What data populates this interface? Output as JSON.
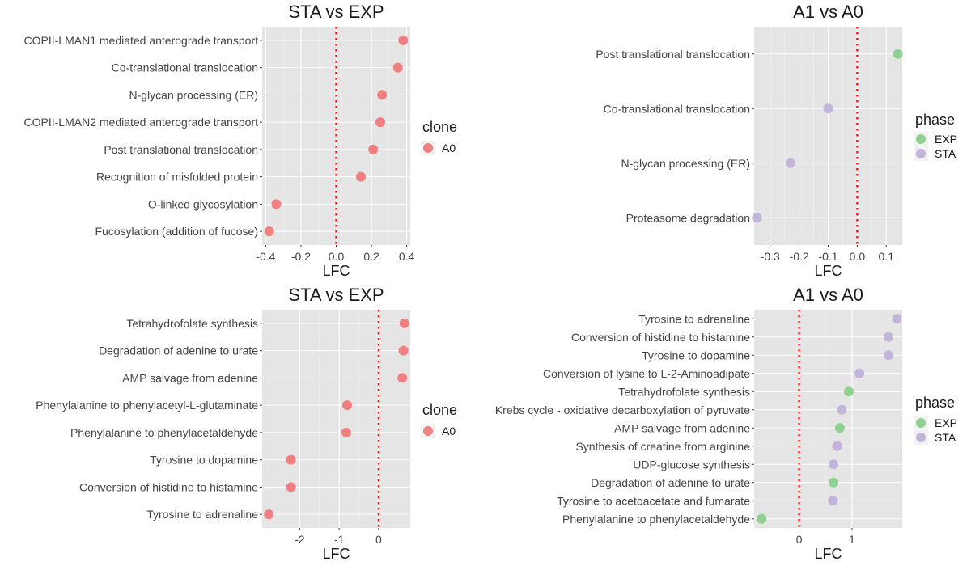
{
  "colors": {
    "panel_background": "#e5e5e5",
    "grid_major": "#ffffff",
    "grid_minor": "#f0f0f0",
    "zero_line": "#ff0000",
    "clone_A0": "#f08080",
    "phase_EXP": "#90d090",
    "phase_STA": "#c3b4dc",
    "text_dark": "#444444",
    "title": "#1a1a1a"
  },
  "chart_data": [
    {
      "type": "scatter",
      "title": "STA vs EXP",
      "xlabel": "LFC",
      "ylabel": "",
      "xlim": [
        -0.42,
        0.42
      ],
      "xticks": [
        -0.4,
        -0.2,
        0.0,
        0.2,
        0.4
      ],
      "xtick_labels": [
        "-0.4",
        "-0.2",
        "0.0",
        "0.2",
        "0.4"
      ],
      "reference_line_x": 0,
      "categories": [
        "COPII-LMAN1 mediated anterograde transport",
        "Co-translational translocation",
        "N-glycan processing (ER)",
        "COPII-LMAN2 mediated anterograde transport",
        "Post translational translocation",
        "Recognition of misfolded protein",
        "O-linked glycosylation",
        "Fucosylation (addition of fucose)"
      ],
      "series": [
        {
          "name": "A0",
          "color_key": "clone_A0",
          "values": [
            0.38,
            0.35,
            0.26,
            0.25,
            0.21,
            0.14,
            -0.34,
            -0.38
          ]
        }
      ],
      "legend": {
        "title": "clone",
        "position": "right"
      },
      "grid": true
    },
    {
      "type": "scatter",
      "title": "A1 vs A0",
      "xlabel": "LFC",
      "ylabel": "",
      "xlim": [
        -0.355,
        0.155
      ],
      "xticks": [
        -0.3,
        -0.2,
        -0.1,
        0.0,
        0.1
      ],
      "xtick_labels": [
        "-0.3",
        "-0.2",
        "-0.1",
        "0.0",
        "0.1"
      ],
      "reference_line_x": 0,
      "categories": [
        "Post translational translocation",
        "Co-translational translocation",
        "N-glycan processing (ER)",
        "Proteasome degradation"
      ],
      "points": [
        {
          "phase": "EXP",
          "value": 0.14
        },
        {
          "phase": "STA",
          "value": -0.1
        },
        {
          "phase": "STA",
          "value": -0.23
        },
        {
          "phase": "STA",
          "value": -0.345
        }
      ],
      "legend": {
        "title": "phase",
        "entries": [
          "EXP",
          "STA"
        ],
        "position": "right"
      },
      "grid": true
    },
    {
      "type": "scatter",
      "title": "STA vs EXP",
      "xlabel": "LFC",
      "ylabel": "",
      "xlim": [
        -2.95,
        0.8
      ],
      "xticks": [
        -2,
        -1,
        0
      ],
      "xtick_labels": [
        "-2",
        "-1",
        "0"
      ],
      "reference_line_x": 0,
      "categories": [
        "Tetrahydrofolate synthesis",
        "Degradation of adenine to urate",
        "AMP salvage from adenine",
        "Phenylalanine to phenylacetyl-L-glutaminate",
        "Phenylalanine to phenylacetaldehyde",
        "Tyrosine to dopamine",
        "Conversion of histidine to histamine",
        "Tyrosine to adrenaline"
      ],
      "series": [
        {
          "name": "A0",
          "color_key": "clone_A0",
          "values": [
            0.65,
            0.63,
            0.6,
            -0.8,
            -0.82,
            -2.22,
            -2.22,
            -2.78
          ]
        }
      ],
      "legend": {
        "title": "clone",
        "position": "right"
      },
      "grid": true
    },
    {
      "type": "scatter",
      "title": "A1 vs A0",
      "xlabel": "LFC",
      "ylabel": "",
      "xlim": [
        -0.85,
        1.95
      ],
      "xticks": [
        0,
        1
      ],
      "xtick_labels": [
        "0",
        "1"
      ],
      "reference_line_x": 0,
      "categories": [
        "Tyrosine to adrenaline",
        "Conversion of histidine to histamine",
        "Tyrosine to dopamine",
        "Conversion of lysine to L-2-Aminoadipate",
        "Tetrahydrofolate synthesis",
        "Krebs cycle - oxidative decarboxylation of pyruvate",
        "AMP salvage from adenine",
        "Synthesis of creatine from arginine",
        "UDP-glucose synthesis",
        "Degradation of adenine to urate",
        "Tyrosine to acetoacetate and fumarate",
        "Phenylalanine to phenylacetaldehyde"
      ],
      "points": [
        {
          "phase": "STA",
          "value": 1.85
        },
        {
          "phase": "STA",
          "value": 1.69
        },
        {
          "phase": "STA",
          "value": 1.69
        },
        {
          "phase": "STA",
          "value": 1.14
        },
        {
          "phase": "EXP",
          "value": 0.94
        },
        {
          "phase": "STA",
          "value": 0.81
        },
        {
          "phase": "EXP",
          "value": 0.77
        },
        {
          "phase": "STA",
          "value": 0.72
        },
        {
          "phase": "STA",
          "value": 0.65
        },
        {
          "phase": "EXP",
          "value": 0.65
        },
        {
          "phase": "STA",
          "value": 0.64
        },
        {
          "phase": "EXP",
          "value": -0.71
        }
      ],
      "legend": {
        "title": "phase",
        "entries": [
          "EXP",
          "STA"
        ],
        "position": "right"
      },
      "grid": true
    }
  ]
}
